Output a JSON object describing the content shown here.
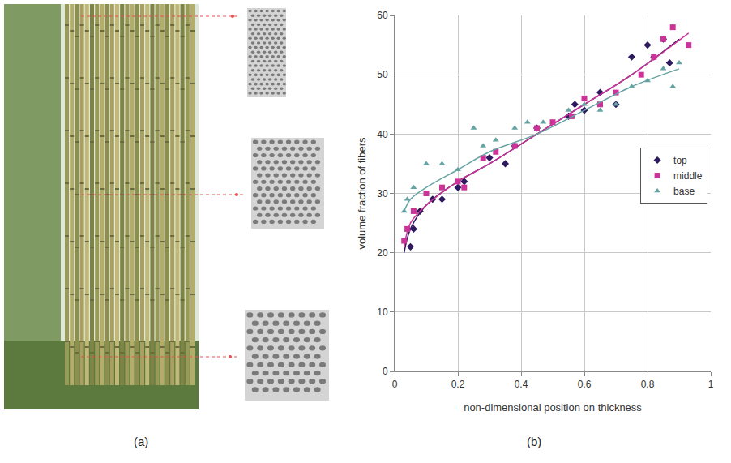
{
  "panel_labels": [
    "(a)",
    "(b)"
  ],
  "chart_data": {
    "type": "scatter",
    "x_label": "non-dimensional position on thickness",
    "y_label": "volume fraction of fibers",
    "xlim": [
      0,
      1
    ],
    "xticks": [
      0,
      0.2,
      0.4,
      0.6,
      0.8,
      1
    ],
    "ylim": [
      0,
      60
    ],
    "yticks": [
      0,
      10,
      20,
      30,
      40,
      50,
      60
    ],
    "grid": true,
    "legend": "right",
    "series": [
      {
        "name": "top",
        "color": "#2e1a5e",
        "marker": "diamond",
        "x": [
          0.05,
          0.06,
          0.08,
          0.12,
          0.15,
          0.2,
          0.22,
          0.3,
          0.35,
          0.38,
          0.45,
          0.55,
          0.57,
          0.6,
          0.65,
          0.7,
          0.75,
          0.8,
          0.82,
          0.85,
          0.87
        ],
        "values": [
          21,
          24,
          27,
          29,
          29,
          31,
          32,
          36,
          35,
          38,
          41,
          43,
          45,
          44,
          47,
          45,
          53,
          55,
          53,
          56,
          52
        ],
        "trend_x": [
          0.03,
          0.05,
          0.1,
          0.2,
          0.3,
          0.45,
          0.6,
          0.75,
          0.9
        ],
        "trend_values": [
          20,
          24,
          28,
          32,
          35,
          40,
          45,
          50,
          56
        ]
      },
      {
        "name": "middle",
        "color": "#cc3399",
        "marker": "square",
        "x": [
          0.03,
          0.04,
          0.06,
          0.1,
          0.15,
          0.2,
          0.22,
          0.28,
          0.32,
          0.38,
          0.45,
          0.5,
          0.56,
          0.6,
          0.65,
          0.7,
          0.78,
          0.82,
          0.85,
          0.88,
          0.93
        ],
        "values": [
          22,
          24,
          27,
          30,
          31,
          32,
          31,
          36,
          37,
          38,
          41,
          42,
          43,
          46,
          45,
          47,
          50,
          53,
          56,
          58,
          55
        ],
        "trend_x": [
          0.03,
          0.05,
          0.1,
          0.2,
          0.3,
          0.45,
          0.6,
          0.75,
          0.93
        ],
        "trend_values": [
          21,
          25,
          28,
          32,
          35,
          40,
          45,
          50,
          57
        ]
      },
      {
        "name": "base",
        "color": "#66a3a3",
        "marker": "triangle-up",
        "x": [
          0.03,
          0.04,
          0.06,
          0.1,
          0.15,
          0.2,
          0.25,
          0.28,
          0.32,
          0.38,
          0.42,
          0.47,
          0.55,
          0.6,
          0.65,
          0.7,
          0.75,
          0.8,
          0.85,
          0.88,
          0.9
        ],
        "values": [
          27,
          29,
          31,
          35,
          35,
          34,
          41,
          38,
          39,
          41,
          42,
          42,
          44,
          45,
          44,
          45,
          48,
          49,
          51,
          48,
          52
        ],
        "trend_x": [
          0.03,
          0.05,
          0.1,
          0.2,
          0.3,
          0.45,
          0.6,
          0.75,
          0.9
        ],
        "trend_values": [
          27,
          29,
          31,
          34,
          37,
          40,
          44,
          48,
          51
        ]
      }
    ]
  }
}
